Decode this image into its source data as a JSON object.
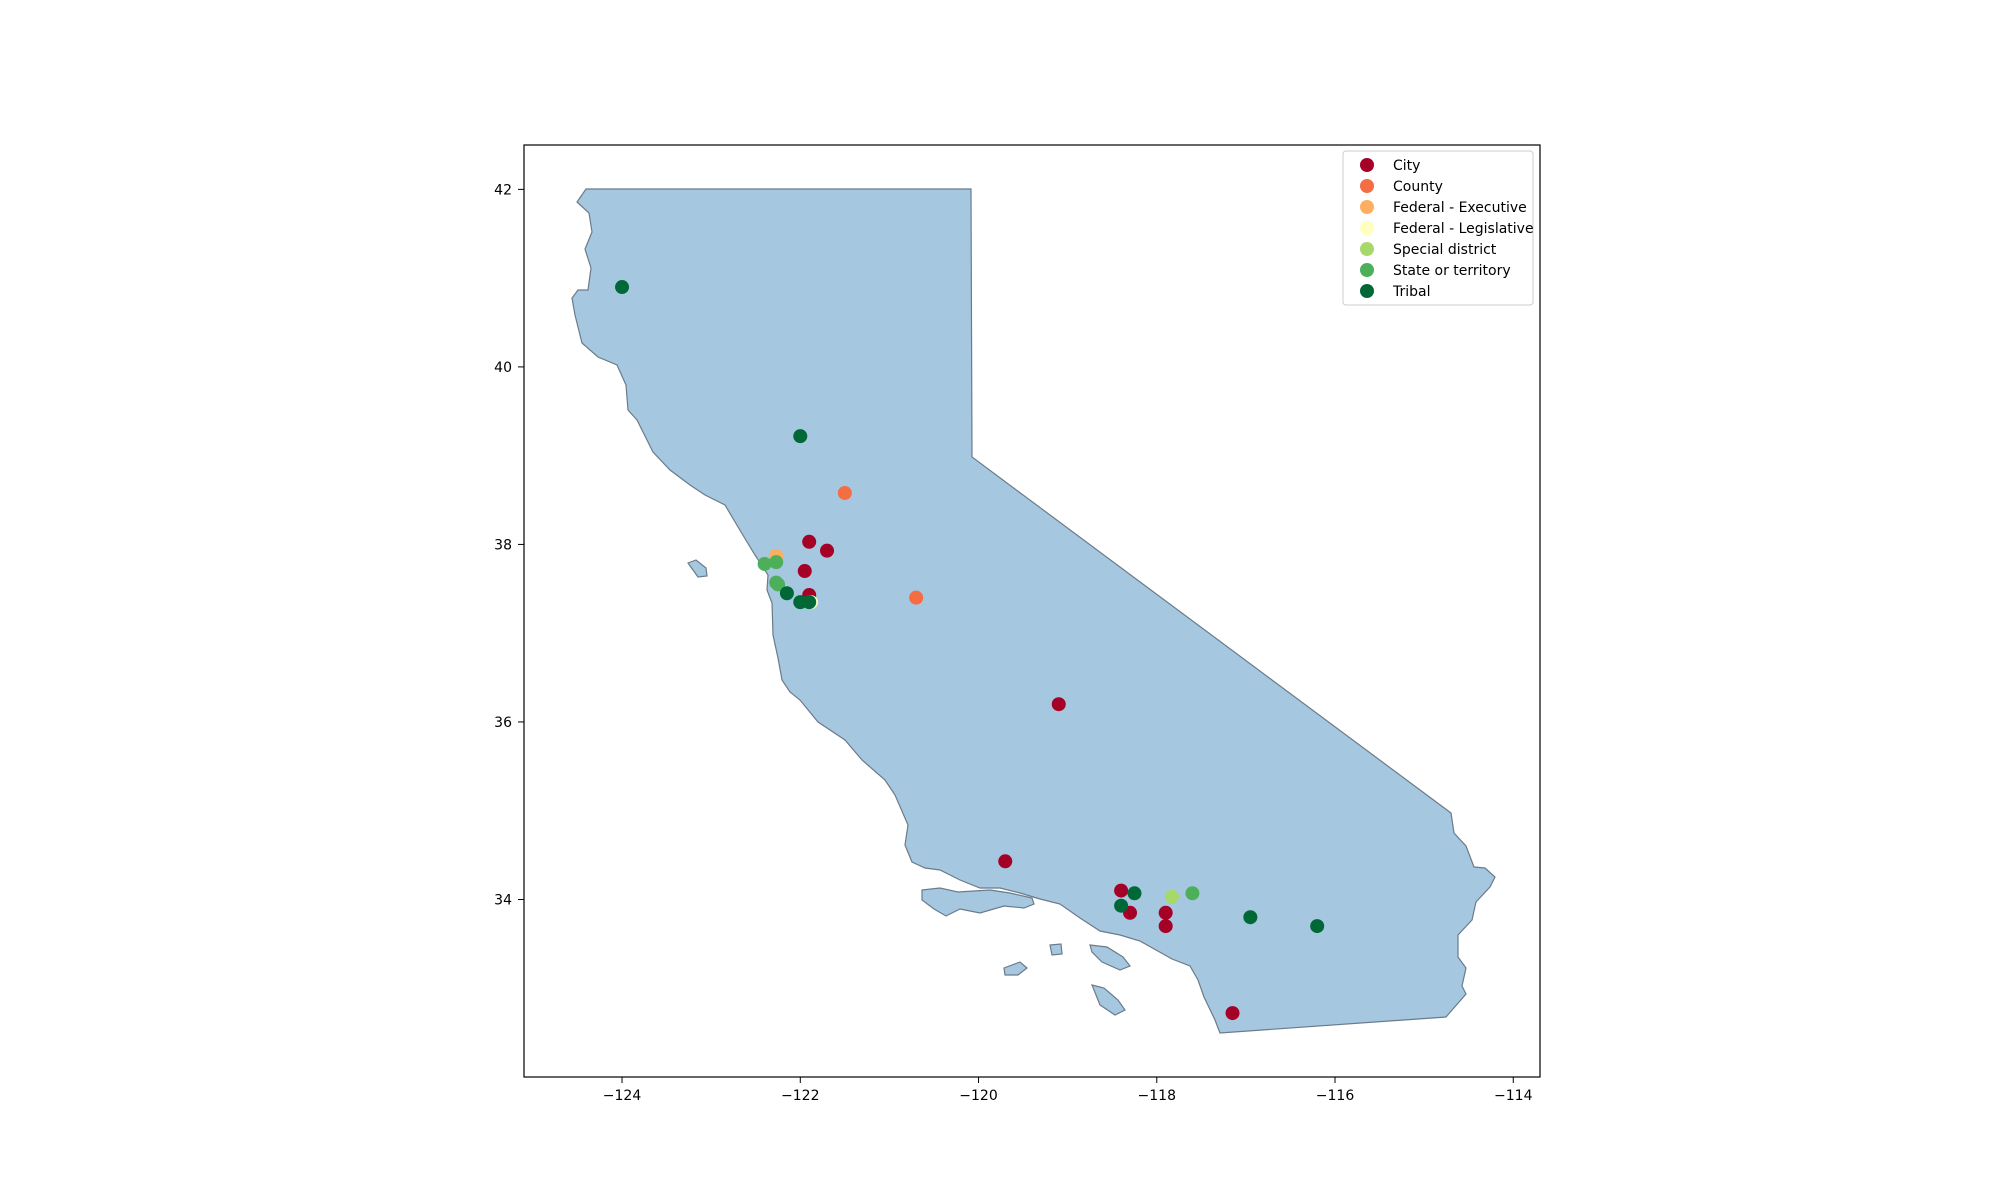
{
  "chart_data": {
    "type": "scatter",
    "title": "",
    "xlabel": "",
    "ylabel": "",
    "xlim": [
      -125.1,
      -113.7
    ],
    "ylim": [
      32.0,
      42.5
    ],
    "x_ticks": [
      "−124",
      "−122",
      "−120",
      "−118",
      "−116",
      "−114"
    ],
    "x_tick_values": [
      -124,
      -122,
      -120,
      -118,
      -116,
      -114
    ],
    "y_ticks": [
      "34",
      "36",
      "38",
      "40",
      "42"
    ],
    "y_tick_values": [
      34,
      36,
      38,
      40,
      42
    ],
    "grid": false,
    "legend_position": "top-right",
    "basemap": {
      "region": "California",
      "fill": "#a5c7df",
      "stroke": "#6b7b8a"
    },
    "series": [
      {
        "name": "City",
        "color": "#a50026",
        "points": [
          [
            -121.9,
            38.03
          ],
          [
            -121.7,
            37.93
          ],
          [
            -121.95,
            37.7
          ],
          [
            -121.9,
            37.43
          ],
          [
            -119.1,
            36.2
          ],
          [
            -119.7,
            34.43
          ],
          [
            -118.4,
            34.1
          ],
          [
            -118.3,
            33.85
          ],
          [
            -117.9,
            33.85
          ],
          [
            -117.9,
            33.7
          ],
          [
            -117.15,
            32.72
          ]
        ]
      },
      {
        "name": "County",
        "color": "#f46d43",
        "points": [
          [
            -121.5,
            38.58
          ],
          [
            -120.7,
            37.4
          ]
        ]
      },
      {
        "name": "Federal - Executive",
        "color": "#fdae61",
        "points": [
          [
            -122.27,
            37.87
          ]
        ]
      },
      {
        "name": "Federal - Legislative",
        "color": "#ffffbf",
        "points": [
          [
            -121.88,
            37.35
          ]
        ]
      },
      {
        "name": "Special district",
        "color": "#a6d96a",
        "points": [
          [
            -117.83,
            34.03
          ]
        ]
      },
      {
        "name": "State or territory",
        "color": "#4daf5a",
        "points": [
          [
            -122.4,
            37.78
          ],
          [
            -122.27,
            37.8
          ],
          [
            -122.27,
            37.57
          ],
          [
            -122.25,
            37.55
          ],
          [
            -117.6,
            34.07
          ]
        ]
      },
      {
        "name": "Tribal",
        "color": "#006837",
        "points": [
          [
            -124.0,
            40.9
          ],
          [
            -122.0,
            39.22
          ],
          [
            -122.15,
            37.45
          ],
          [
            -122.0,
            37.35
          ],
          [
            -121.9,
            37.35
          ],
          [
            -118.25,
            34.07
          ],
          [
            -118.4,
            33.93
          ],
          [
            -116.95,
            33.8
          ],
          [
            -116.2,
            33.7
          ]
        ]
      }
    ]
  }
}
